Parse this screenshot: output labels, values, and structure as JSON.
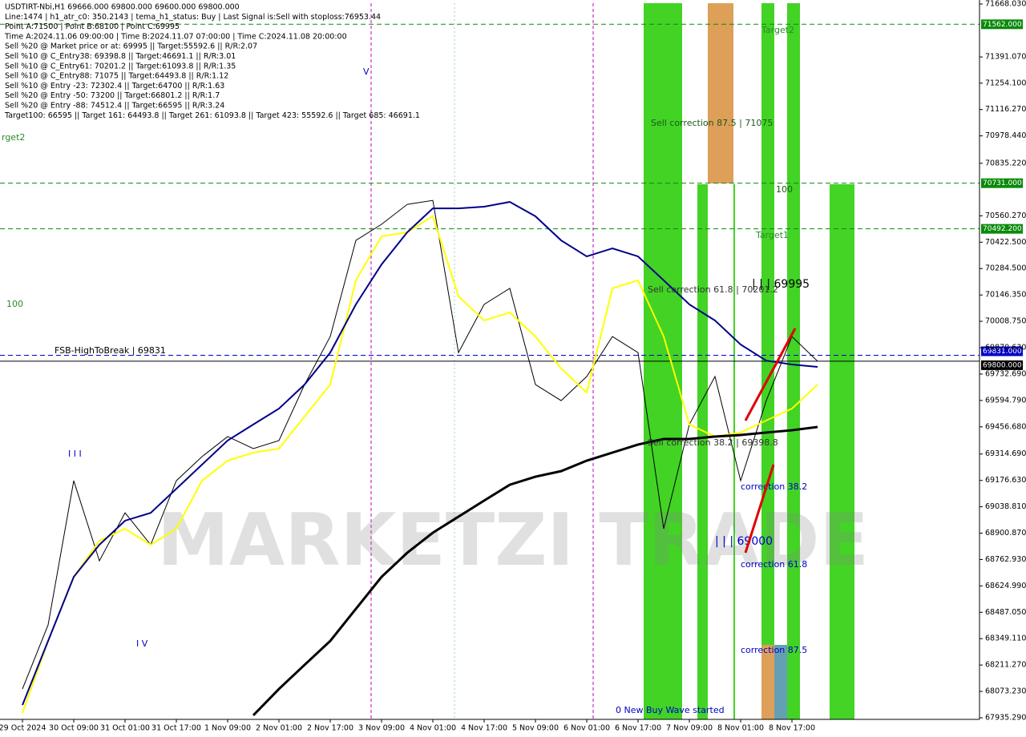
{
  "chart_data": {
    "type": "line",
    "info_lines": [
      "USDTIRT-Nbi,H1  69666.000 69800.000 69600.000 69800.000",
      "Line:1474  |  h1_atr_c0: 350.2143  |  tema_h1_status: Buy  |  Last Signal is:Sell with stoploss:76953.44",
      "Point A:71500  |  Point B:68100  |  Point C:69995",
      "Time A:2024.11.06 09:00:00  |  Time B:2024.11.07 07:00:00  |  Time C:2024.11.08 20:00:00",
      "Sell %20 @ Market price or at: 69995  ||  Target:55592.6  ||  R/R:2.07",
      "Sell %10 @ C_Entry38: 69398.8  ||  Target:46691.1  ||  R/R:3.01",
      "Sell %10 @ C_Entry61: 70201.2  ||  Target:61093.8  ||  R/R:1.35",
      "Sell %10 @ C_Entry88: 71075  ||  Target:64493.8  ||  R/R:1.12",
      "Sell %10 @ Entry -23: 72302.4  ||  Target:64700  ||  R/R:1.63",
      "Sell %20 @ Entry -50: 73200  ||  Target:66801.2  ||  R/R:1.7",
      "Sell %20 @ Entry -88: 74512.4  ||  Target:66595  ||  R/R:3.24",
      "Target100: 66595  ||  Target 161: 64493.8  ||  Target 261: 61093.8  ||  Target 423: 55592.6  ||  Target 685: 46691.1"
    ],
    "watermark": "MARKETZI TRADE",
    "categories": [
      "29 Oct 2024",
      null,
      "30 Oct 09:00",
      null,
      "31 Oct 01:00",
      null,
      "31 Oct 17:00",
      null,
      "1 Nov 09:00",
      null,
      "2 Nov 01:00",
      null,
      "2 Nov 17:00",
      null,
      "3 Nov 09:00",
      null,
      "4 Nov 01:00",
      null,
      "4 Nov 17:00",
      null,
      "5 Nov 09:00",
      null,
      "6 Nov 01:00",
      null,
      "6 Nov 17:00",
      null,
      "7 Nov 09:00",
      null,
      "8 Nov 01:00",
      null,
      "8 Nov 17:00",
      null
    ],
    "series": [
      {
        "name": "Price",
        "color": "#000000",
        "values": [
          68086,
          68421,
          69175,
          68756,
          69007,
          68840,
          69175,
          69301,
          69406,
          69343,
          69385,
          69678,
          69929,
          70432,
          70516,
          70620,
          70641,
          69845,
          70097,
          70181,
          69678,
          69594,
          69720,
          69929,
          69845,
          68924,
          69469,
          69720,
          69175,
          69594,
          69929,
          69800
        ]
      },
      {
        "name": "Fast MA",
        "color": "#ffff00",
        "values": [
          67960,
          68337,
          68672,
          68861,
          68924,
          68840,
          68924,
          69175,
          69280,
          69322,
          69343,
          69511,
          69678,
          70223,
          70453,
          70474,
          70558,
          70139,
          70013,
          70055,
          69929,
          69762,
          69636,
          70181,
          70223,
          69929,
          69469,
          69406,
          69427,
          69490,
          69552,
          69678
        ]
      },
      {
        "name": "Mid MA",
        "color": "#00008b",
        "values": [
          68002,
          68337,
          68672,
          68840,
          68966,
          69007,
          69133,
          69259,
          69385,
          69469,
          69552,
          69678,
          69845,
          70097,
          70306,
          70474,
          70599,
          70599,
          70608,
          70633,
          70558,
          70432,
          70348,
          70390,
          70348,
          70223,
          70097,
          70013,
          69887,
          69803,
          69783,
          69770
        ]
      },
      {
        "name": "Slow MA",
        "color": "#000000",
        "values": [
          null,
          null,
          null,
          null,
          null,
          null,
          null,
          null,
          null,
          67948,
          68086,
          68212,
          68337,
          68505,
          68672,
          68798,
          68903,
          68987,
          69071,
          69154,
          69196,
          69225,
          69280,
          69322,
          69364,
          69393,
          69393,
          69406,
          69414,
          69427,
          69439,
          69456
        ]
      }
    ],
    "levels": [
      {
        "value": 71562,
        "label": "71562.000",
        "color": "#0a8a0a"
      },
      {
        "value": 70731,
        "label": "70731.000",
        "color": "#0a8a0a"
      },
      {
        "value": 70492.2,
        "label": "70492.200",
        "color": "#0a8a0a"
      },
      {
        "value": 69831,
        "label": "69831.000",
        "color": "#0000c8"
      },
      {
        "value": 69800,
        "label": "69800.000",
        "color": "#000000"
      }
    ],
    "annotations": [
      "Target2",
      "Sell correction 87.5 | 71075",
      "100",
      "Target1",
      "Sell correction 61.8 | 70201.2",
      "| | | 69995",
      "FSB-HighToBreak | 69831",
      "100",
      "rget2",
      "correction 38.2",
      "| | | 69000",
      "correction 61.8",
      "correction 87.5",
      "0 New Buy Wave started",
      "I I I",
      "I V",
      "V",
      "Sell correction 38.2 | 69398.8"
    ],
    "ylim": [
      67935.29,
      71668.03
    ],
    "yticks": [
      {
        "value": 71668.03,
        "label": "71668.030"
      },
      {
        "value": 71391.07,
        "label": "71391.070"
      },
      {
        "value": 71254.1,
        "label": "71254.100"
      },
      {
        "value": 71116.27,
        "label": "71116.270"
      },
      {
        "value": 70978.44,
        "label": "70978.440"
      },
      {
        "value": 70835.22,
        "label": "70835.220"
      },
      {
        "value": 70560.27,
        "label": "70560.270"
      },
      {
        "value": 70422.5,
        "label": "70422.500"
      },
      {
        "value": 70284.5,
        "label": "70284.500"
      },
      {
        "value": 70146.35,
        "label": "70146.350"
      },
      {
        "value": 70008.75,
        "label": "70008.750"
      },
      {
        "value": 69870.63,
        "label": "69870.630"
      },
      {
        "value": 69732.69,
        "label": "69732.690"
      },
      {
        "value": 69594.79,
        "label": "69594.790"
      },
      {
        "value": 69456.68,
        "label": "69456.680"
      },
      {
        "value": 69314.69,
        "label": "69314.690"
      },
      {
        "value": 69176.63,
        "label": "69176.630"
      },
      {
        "value": 69038.81,
        "label": "69038.810"
      },
      {
        "value": 68900.87,
        "label": "68900.870"
      },
      {
        "value": 68762.93,
        "label": "68762.930"
      },
      {
        "value": 68624.99,
        "label": "68624.990"
      },
      {
        "value": 68487.05,
        "label": "68487.050"
      },
      {
        "value": 68349.11,
        "label": "68349.110"
      },
      {
        "value": 68211.27,
        "label": "68211.270"
      },
      {
        "value": 68073.23,
        "label": "68073.230"
      },
      {
        "value": 67935.29,
        "label": "67935.290"
      }
    ]
  }
}
